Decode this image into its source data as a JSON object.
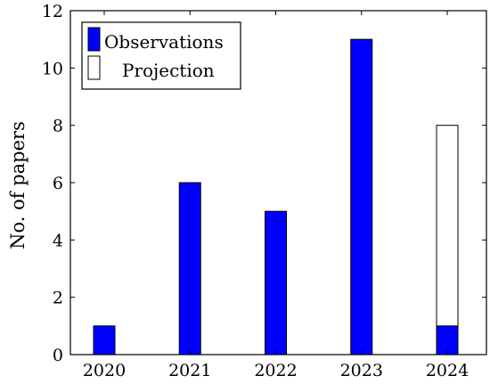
{
  "chart_data": {
    "type": "bar",
    "categories": [
      "2020",
      "2021",
      "2022",
      "2023",
      "2024"
    ],
    "series": [
      {
        "name": "Observations",
        "color": "#0000ff",
        "values": [
          1,
          6,
          5,
          11,
          1
        ]
      },
      {
        "name": "Projection",
        "color": "#ffffff",
        "values": [
          null,
          null,
          null,
          null,
          8
        ]
      }
    ],
    "ylabel": "No. of papers",
    "xlabel": "",
    "ylim": [
      0,
      12
    ],
    "yticks": [
      "0",
      "2",
      "4",
      "6",
      "8",
      "10",
      "12"
    ],
    "grid": false,
    "legend_position": "top-left"
  }
}
